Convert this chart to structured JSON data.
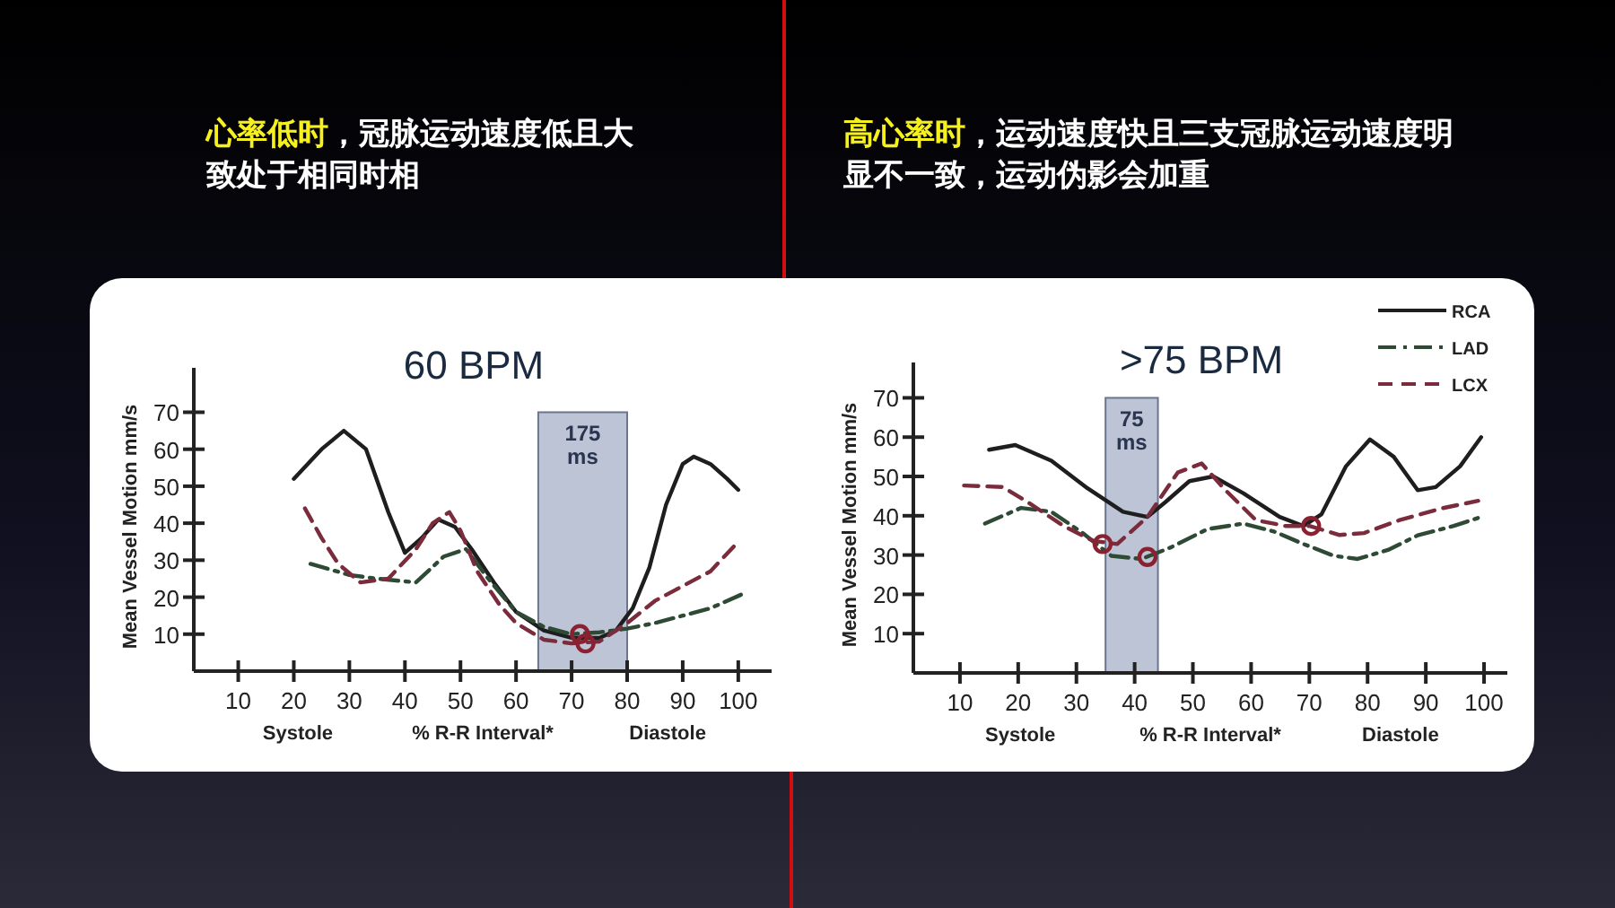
{
  "chart_data": [
    {
      "type": "line",
      "title": "心率低时，冠脉运动速度低且大致处于相同时相",
      "subtitle": "60 BPM",
      "xlabel": "% R-R Interval*",
      "ylabel": "Mean Vessel Motion mm/s",
      "annotations": [
        "Systole",
        "Diastole"
      ],
      "xlim": [
        2,
        106
      ],
      "ylim": [
        0,
        82
      ],
      "xticks": [
        10,
        20,
        30,
        40,
        50,
        60,
        70,
        80,
        90,
        100
      ],
      "yticks": [
        10,
        20,
        30,
        40,
        50,
        60,
        70
      ],
      "legend": false,
      "bands": [
        {
          "axis": "x",
          "from": 64,
          "to": 80,
          "label": "175 ms",
          "color": "#bcc4d6"
        }
      ],
      "series": [
        {
          "color": "#1e1e1e",
          "line_style": "solid",
          "x": [
            20,
            25,
            29,
            33,
            37,
            40,
            43,
            46,
            49,
            52,
            56,
            60,
            65,
            70,
            75,
            78,
            81,
            84,
            87,
            90,
            92,
            95,
            98,
            100
          ],
          "values": [
            52,
            60,
            65,
            60,
            43,
            32,
            36,
            41,
            39,
            33,
            24,
            16,
            11,
            9,
            9,
            11,
            17,
            28,
            45,
            56,
            58,
            56,
            52,
            49
          ]
        },
        {
          "color": "#2e4a35",
          "line_style": "dashdot",
          "x": [
            23,
            30,
            35,
            42,
            47,
            51,
            55,
            60,
            65,
            70,
            75,
            80,
            85,
            90,
            95,
            101
          ],
          "values": [
            29,
            26,
            25,
            24,
            31,
            33,
            25,
            16,
            12,
            10,
            10.5,
            11.5,
            13,
            15,
            17,
            21
          ]
        },
        {
          "color": "#7a2c3c",
          "line_style": "dashed",
          "x": [
            22,
            25,
            28,
            32,
            37,
            42,
            45,
            48,
            50,
            53,
            57,
            60,
            65,
            70,
            75,
            80,
            85,
            90,
            95,
            100
          ],
          "values": [
            44,
            36,
            29,
            24,
            25,
            33,
            40,
            43,
            38,
            27,
            18,
            13,
            8.5,
            7.5,
            8,
            13,
            19,
            23,
            27,
            35
          ]
        },
        {
          "type": "scatter",
          "marker": "circle",
          "color": "#8a2030",
          "x": [
            71.5,
            72.5
          ],
          "values": [
            10,
            7.5
          ]
        }
      ]
    },
    {
      "type": "line",
      "title": "高心率时，运动速度快且三支冠脉运动速度明显不一致，运动伪影会加重",
      "subtitle": ">75 BPM",
      "xlabel": "% R-R Interval*",
      "ylabel": "Mean Vessel Motion mm/s",
      "annotations": [
        "Systole",
        "Diastole"
      ],
      "xlim": [
        2,
        104
      ],
      "ylim": [
        0,
        79
      ],
      "xticks": [
        10,
        20,
        30,
        40,
        50,
        60,
        70,
        80,
        90,
        100
      ],
      "yticks": [
        10,
        20,
        30,
        40,
        50,
        60,
        70
      ],
      "legend": "top right",
      "bands": [
        {
          "axis": "x",
          "from": 35,
          "to": 44,
          "label": "75 ms",
          "color": "#bcc4d6"
        }
      ],
      "series": [
        {
          "name": "RCA",
          "color": "#1e1e1e",
          "line_style": "solid",
          "x": [
            15,
            19.5,
            25.7,
            31.9,
            38,
            42.2,
            45.3,
            49.4,
            53.5,
            58.7,
            64.9,
            69,
            72.1,
            76.3,
            80.4,
            84.5,
            88.6,
            91.7,
            95.9,
            99.5
          ],
          "values": [
            56.8,
            58,
            54,
            47,
            41,
            39.7,
            43.5,
            48.8,
            50,
            45.7,
            39.7,
            37.4,
            40.4,
            52.6,
            59.4,
            55,
            46.5,
            47.3,
            52.6,
            60
          ]
        },
        {
          "name": "LAD",
          "color": "#2e4a35",
          "line_style": "dashdot",
          "x": [
            14.3,
            20.5,
            25.7,
            30.8,
            36,
            41.2,
            46.3,
            52.5,
            58.7,
            63.9,
            69,
            74.2,
            78.3,
            83.5,
            88.6,
            94.8,
            99.5
          ],
          "values": [
            38,
            42,
            41,
            35.9,
            29.8,
            29,
            32,
            36.6,
            38,
            36,
            32.8,
            29.8,
            29,
            31.3,
            35,
            37.4,
            39.7
          ]
        },
        {
          "name": "LCX",
          "color": "#7a2c3c",
          "line_style": "dashed",
          "x": [
            10.7,
            17.4,
            21.6,
            27.8,
            32.9,
            37,
            42.2,
            47.4,
            51.5,
            55.6,
            60.8,
            65.9,
            70,
            75.2,
            79.4,
            85.5,
            92.8,
            99
          ],
          "values": [
            47.7,
            47.3,
            43.5,
            37.4,
            33.6,
            32.8,
            39.7,
            51,
            53.3,
            46.5,
            38.9,
            37.4,
            37.4,
            35.1,
            35.6,
            38.9,
            41.9,
            43.8
          ]
        },
        {
          "type": "scatter",
          "marker": "circle",
          "color": "#8a2030",
          "x": [
            34.5,
            42.2,
            70.3
          ],
          "values": [
            32.8,
            29.5,
            37.4
          ]
        }
      ]
    }
  ]
}
